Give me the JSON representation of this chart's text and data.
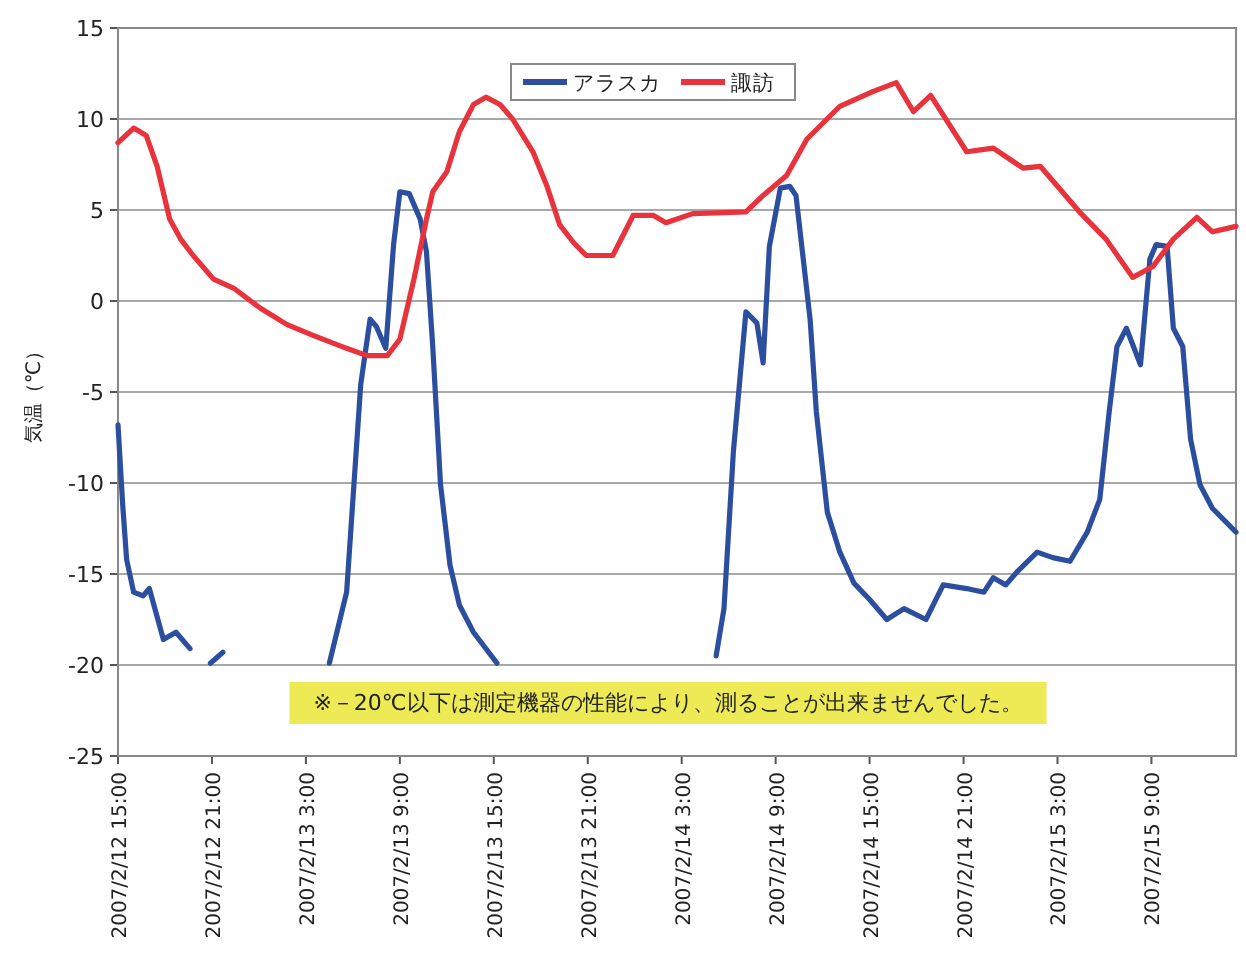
{
  "chart_data": {
    "type": "line",
    "ylabel": "気温（℃）",
    "xlim": [
      "2007-02-12T15:00",
      "2007-02-15T14:24"
    ],
    "ylim": [
      -25,
      15
    ],
    "xticks": [
      {
        "value": "2007-02-12T15:00",
        "label": "2007/2/12 15:00"
      },
      {
        "value": "2007-02-12T21:00",
        "label": "2007/2/12 21:00"
      },
      {
        "value": "2007-02-13T03:00",
        "label": "2007/2/13 3:00"
      },
      {
        "value": "2007-02-13T09:00",
        "label": "2007/2/13 9:00"
      },
      {
        "value": "2007-02-13T15:00",
        "label": "2007/2/13 15:00"
      },
      {
        "value": "2007-02-13T21:00",
        "label": "2007/2/13 21:00"
      },
      {
        "value": "2007-02-14T03:00",
        "label": "2007/2/14 3:00"
      },
      {
        "value": "2007-02-14T09:00",
        "label": "2007/2/14 9:00"
      },
      {
        "value": "2007-02-14T15:00",
        "label": "2007/2/14 15:00"
      },
      {
        "value": "2007-02-14T21:00",
        "label": "2007/2/14 21:00"
      },
      {
        "value": "2007-02-15T03:00",
        "label": "2007/2/15 3:00"
      },
      {
        "value": "2007-02-15T09:00",
        "label": "2007/2/15 9:00"
      }
    ],
    "yticks": [
      -25,
      -20,
      -15,
      -10,
      -5,
      0,
      5,
      10,
      15
    ],
    "grid": "y",
    "legend": "top",
    "marker": "none",
    "line_style": "solid",
    "annotations": [
      "※－20℃以下は測定機器の性能により、測ることが出来ませんでした。"
    ],
    "series": [
      {
        "name": "アラスカ",
        "color": "#2b4f9e",
        "x": [
          "2007-02-12T15:00",
          "2007-02-12T15:18",
          "2007-02-12T15:33",
          "2007-02-12T16:00",
          "2007-02-12T16:36",
          "2007-02-12T17:00",
          "2007-02-12T17:54",
          "2007-02-12T18:42",
          "2007-02-12T19:36",
          "2007-02-12T20:12",
          "2007-02-12T20:54",
          "2007-02-12T21:42",
          "2007-02-13T01:00",
          "2007-02-13T04:30",
          "2007-02-13T05:36",
          "2007-02-13T06:30",
          "2007-02-13T07:06",
          "2007-02-13T07:30",
          "2007-02-13T08:06",
          "2007-02-13T08:36",
          "2007-02-13T09:00",
          "2007-02-13T09:36",
          "2007-02-13T10:18",
          "2007-02-13T10:42",
          "2007-02-13T11:06",
          "2007-02-13T11:36",
          "2007-02-13T12:12",
          "2007-02-13T12:48",
          "2007-02-13T13:42",
          "2007-02-13T15:12",
          "2007-02-13T22:00",
          "2007-02-14T05:12",
          "2007-02-14T05:42",
          "2007-02-14T06:18",
          "2007-02-14T07:06",
          "2007-02-14T07:48",
          "2007-02-14T08:12",
          "2007-02-14T08:36",
          "2007-02-14T09:18",
          "2007-02-14T09:54",
          "2007-02-14T10:18",
          "2007-02-14T11:12",
          "2007-02-14T11:36",
          "2007-02-14T12:18",
          "2007-02-14T13:06",
          "2007-02-14T14:00",
          "2007-02-14T15:00",
          "2007-02-14T16:06",
          "2007-02-14T17:12",
          "2007-02-14T18:36",
          "2007-02-14T19:42",
          "2007-02-14T21:12",
          "2007-02-14T22:18",
          "2007-02-14T22:54",
          "2007-02-14T23:42",
          "2007-02-15T00:24",
          "2007-02-15T01:42",
          "2007-02-15T02:42",
          "2007-02-15T03:48",
          "2007-02-15T04:54",
          "2007-02-15T05:42",
          "2007-02-15T06:18",
          "2007-02-15T06:48",
          "2007-02-15T07:24",
          "2007-02-15T08:18",
          "2007-02-15T08:54",
          "2007-02-15T09:18",
          "2007-02-15T10:00",
          "2007-02-15T10:24",
          "2007-02-15T11:00",
          "2007-02-15T11:30",
          "2007-02-15T12:06",
          "2007-02-15T12:54",
          "2007-02-15T14:24"
        ],
        "values": [
          -6.8,
          -11.2,
          -14.2,
          -16.0,
          -16.2,
          -15.8,
          -18.6,
          -18.2,
          -19.1,
          null,
          -19.9,
          -19.3,
          null,
          -19.9,
          -16.0,
          -4.6,
          -1.0,
          -1.4,
          -2.6,
          3.1,
          6.0,
          5.9,
          4.5,
          2.7,
          -2.5,
          -10.1,
          -14.5,
          -16.7,
          -18.2,
          -19.9,
          null,
          -19.5,
          -16.9,
          -8.3,
          -0.6,
          -1.2,
          -3.4,
          3.0,
          6.2,
          6.3,
          5.8,
          -1.0,
          -6.1,
          -11.6,
          -13.8,
          -15.5,
          -16.4,
          -17.5,
          -16.9,
          -17.5,
          -15.6,
          -15.8,
          -16.0,
          -15.2,
          -15.6,
          -14.9,
          -13.8,
          -14.1,
          -14.3,
          -12.7,
          -10.9,
          -6.1,
          -2.5,
          -1.5,
          -3.5,
          2.3,
          3.1,
          3.0,
          -1.5,
          -2.5,
          -7.6,
          -10.1,
          -11.4,
          -12.7
        ]
      },
      {
        "name": "諏訪",
        "color": "#e8323c",
        "x": [
          "2007-02-12T15:00",
          "2007-02-12T16:00",
          "2007-02-12T16:48",
          "2007-02-12T17:30",
          "2007-02-12T18:18",
          "2007-02-12T19:00",
          "2007-02-12T19:48",
          "2007-02-12T21:06",
          "2007-02-12T22:24",
          "2007-02-13T00:06",
          "2007-02-13T01:48",
          "2007-02-13T03:30",
          "2007-02-13T05:36",
          "2007-02-13T06:54",
          "2007-02-13T08:12",
          "2007-02-13T09:00",
          "2007-02-13T09:54",
          "2007-02-13T10:42",
          "2007-02-13T11:06",
          "2007-02-13T12:00",
          "2007-02-13T12:48",
          "2007-02-13T13:42",
          "2007-02-13T14:30",
          "2007-02-13T15:24",
          "2007-02-13T16:12",
          "2007-02-13T17:30",
          "2007-02-13T18:24",
          "2007-02-13T19:12",
          "2007-02-13T20:06",
          "2007-02-13T20:54",
          "2007-02-13T22:36",
          "2007-02-13T23:54",
          "2007-02-14T01:12",
          "2007-02-14T02:00",
          "2007-02-14T03:42",
          "2007-02-14T07:06",
          "2007-02-14T08:12",
          "2007-02-14T09:42",
          "2007-02-14T11:00",
          "2007-02-14T13:06",
          "2007-02-14T15:12",
          "2007-02-14T16:42",
          "2007-02-14T17:48",
          "2007-02-14T18:54",
          "2007-02-14T21:12",
          "2007-02-14T22:54",
          "2007-02-15T00:48",
          "2007-02-15T01:54",
          "2007-02-15T04:24",
          "2007-02-15T06:06",
          "2007-02-15T07:48",
          "2007-02-15T09:06",
          "2007-02-15T10:24",
          "2007-02-15T11:54",
          "2007-02-15T12:54",
          "2007-02-15T14:24"
        ],
        "values": [
          8.7,
          9.5,
          9.1,
          7.4,
          4.5,
          3.4,
          2.5,
          1.2,
          0.7,
          -0.4,
          -1.3,
          -1.9,
          -2.6,
          -3.0,
          -3.0,
          -2.1,
          1.2,
          4.5,
          6.0,
          7.1,
          9.3,
          10.8,
          11.2,
          10.8,
          10.0,
          8.2,
          6.3,
          4.2,
          3.2,
          2.5,
          2.5,
          4.7,
          4.7,
          4.3,
          4.8,
          4.9,
          5.8,
          6.9,
          8.9,
          10.7,
          11.5,
          12.0,
          10.4,
          11.3,
          8.2,
          8.4,
          7.3,
          7.4,
          4.9,
          3.4,
          1.3,
          1.9,
          3.4,
          4.6,
          3.8,
          4.1
        ]
      }
    ]
  }
}
